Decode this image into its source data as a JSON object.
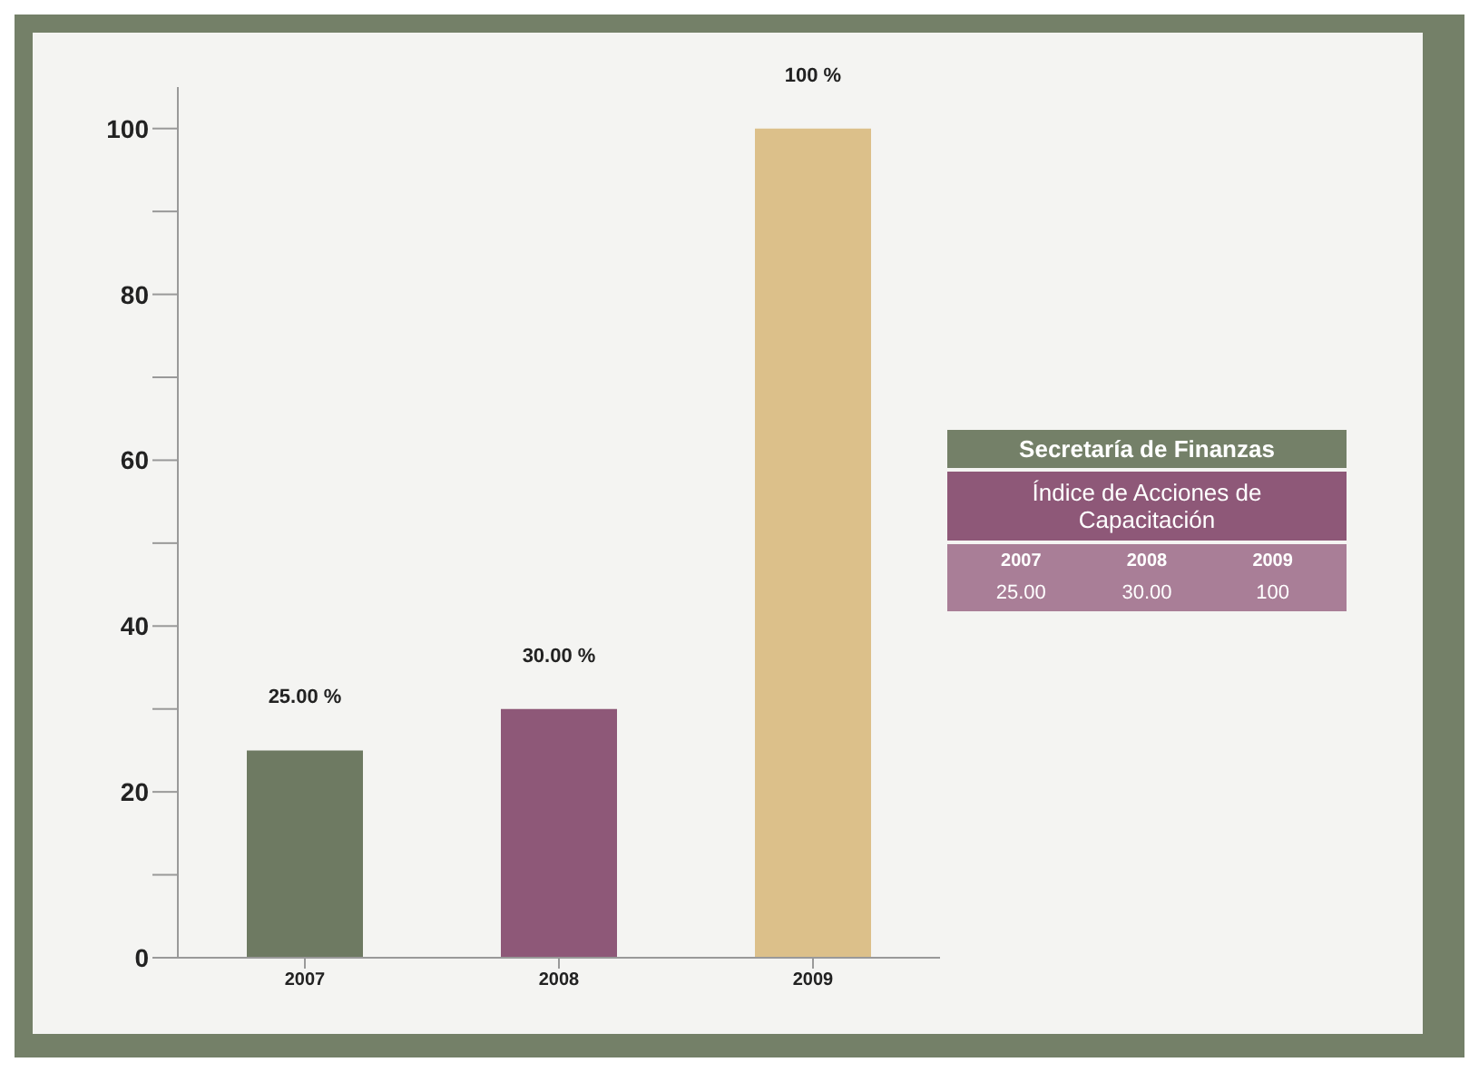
{
  "chart_data": {
    "type": "bar",
    "title": "Secretaría de Finanzas",
    "subtitle": "Índice de Acciones de Capacitación",
    "categories": [
      "2007",
      "2008",
      "2009"
    ],
    "values": [
      25,
      30,
      100
    ],
    "colors": [
      "#6e7a62",
      "#8e5878",
      "#dcc08a"
    ],
    "value_labels": [
      "25.00 %",
      "30.00 %",
      "100 %"
    ],
    "annotations": [
      "25.00",
      "30.00",
      "100"
    ],
    "ylim": [
      0,
      105
    ],
    "yticks": [
      0,
      {
        "value": 10,
        "label": null
      },
      20,
      {
        "value": 30,
        "label": null
      },
      40,
      {
        "value": 50,
        "label": null
      },
      60,
      {
        "value": 70,
        "label": null
      },
      80,
      {
        "value": 90,
        "label": null
      },
      100
    ],
    "grid": false
  }
}
